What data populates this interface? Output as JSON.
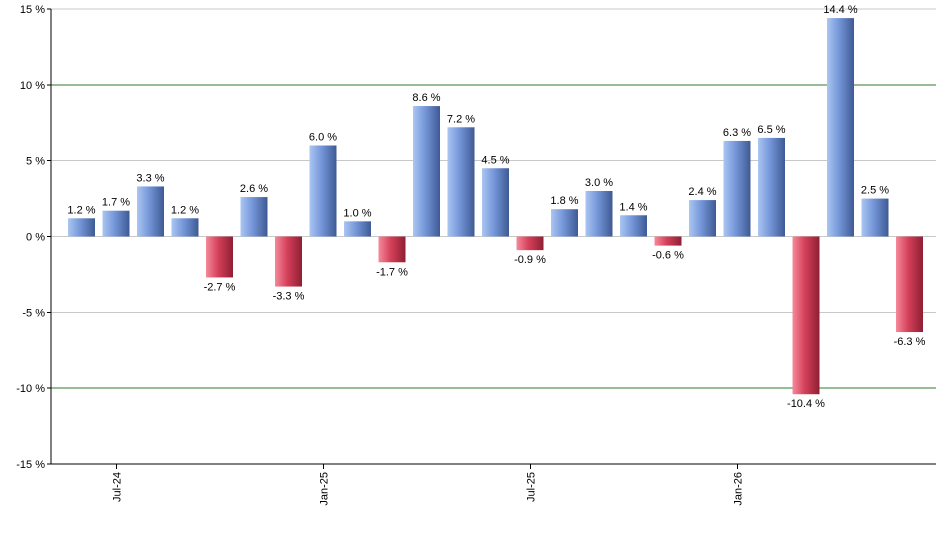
{
  "chart_data": {
    "type": "bar",
    "title": "",
    "xlabel": "",
    "ylabel": "",
    "ylim": [
      -15,
      15
    ],
    "y_ticks": [
      15,
      10,
      5,
      0,
      -5,
      -10,
      -15
    ],
    "y_tick_labels": [
      "15 %",
      "10 %",
      "5 %",
      "0 %",
      "-5 %",
      "-10 %",
      "-15 %"
    ],
    "x_tick_labels": [
      {
        "label": "Jul-24",
        "index": 1
      },
      {
        "label": "Jan-25",
        "index": 7
      },
      {
        "label": "Jul-25",
        "index": 13
      },
      {
        "label": "Jan-26",
        "index": 19
      }
    ],
    "values": [
      1.2,
      1.7,
      3.3,
      1.2,
      -2.7,
      2.6,
      -3.3,
      6.0,
      1.0,
      -1.7,
      8.6,
      7.2,
      4.5,
      -0.9,
      1.8,
      3.0,
      1.4,
      -0.6,
      2.4,
      6.3,
      6.5,
      -10.4,
      14.4,
      2.5,
      -6.3
    ],
    "data_labels": [
      "1.2 %",
      "1.7 %",
      "3.3 %",
      "1.2 %",
      "-2.7 %",
      "2.6 %",
      "-3.3 %",
      "6.0 %",
      "1.0 %",
      "-1.7 %",
      "8.6 %",
      "7.2 %",
      "4.5 %",
      "-0.9 %",
      "1.8 %",
      "3.0 %",
      "1.4 %",
      "-0.6 %",
      "2.4 %",
      "6.3 %",
      "6.5 %",
      "-10.4 %",
      "14.4 %",
      "2.5 %",
      "-6.3 %"
    ],
    "highlight_lines": [
      10,
      -10
    ],
    "grid": true,
    "legend": "none",
    "colors": {
      "positive_light": "#aac6f2",
      "positive_mid": "#7496d8",
      "positive_dark": "#3e5a94",
      "negative_light": "#f58a9a",
      "negative_mid": "#d5405a",
      "negative_dark": "#8e1f33",
      "grid": "#c8c8c8",
      "highlight_line": "#2e7d2e",
      "axis": "#000000"
    }
  }
}
